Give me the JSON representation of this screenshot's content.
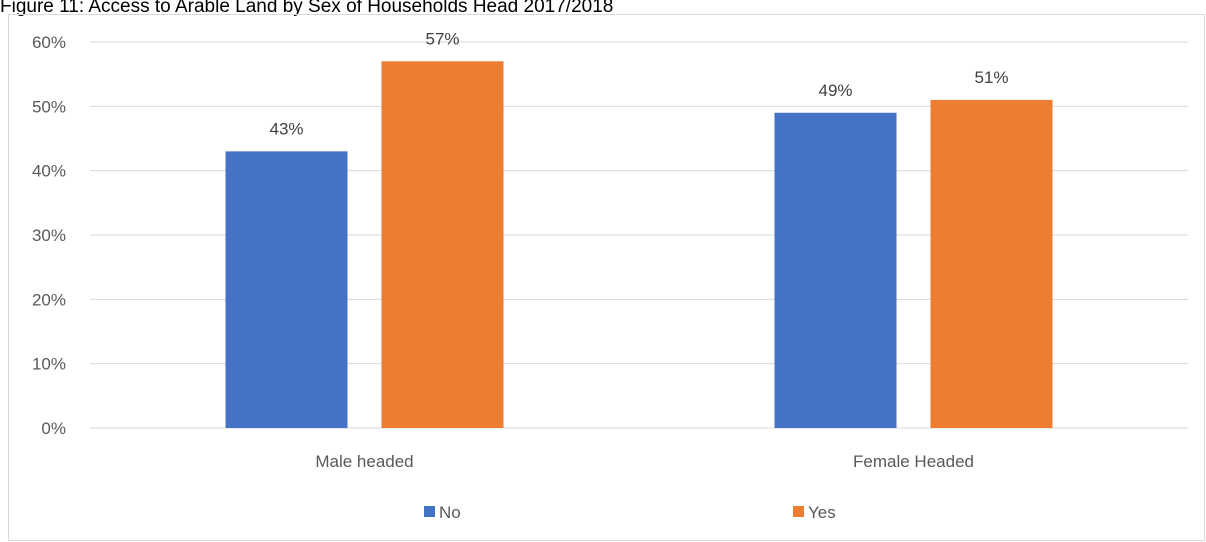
{
  "title": "Figure 11: Access to Arable Land by Sex of Households Head 2017/2018",
  "colors": {
    "No": "#4472c4",
    "Yes": "#ed7d31",
    "grid": "#d9d9d9",
    "axis_text": "#595959"
  },
  "chart_data": {
    "type": "bar",
    "title": "Figure 11: Access to Arable Land by Sex of Households Head 2017/2018",
    "categories": [
      "Male headed",
      "Female Headed"
    ],
    "series": [
      {
        "name": "No",
        "values": [
          0.43,
          0.49
        ],
        "labels": [
          "43%",
          "49%"
        ]
      },
      {
        "name": "Yes",
        "values": [
          0.57,
          0.51
        ],
        "labels": [
          "57%",
          "51%"
        ]
      }
    ],
    "ylim": [
      0,
      0.6
    ],
    "yticks": [
      0,
      0.1,
      0.2,
      0.3,
      0.4,
      0.5,
      0.6
    ],
    "ytick_labels": [
      "0%",
      "10%",
      "20%",
      "30%",
      "40%",
      "50%",
      "60%"
    ],
    "xlabel": "",
    "ylabel": "",
    "grid": true,
    "legend": "bottom"
  }
}
